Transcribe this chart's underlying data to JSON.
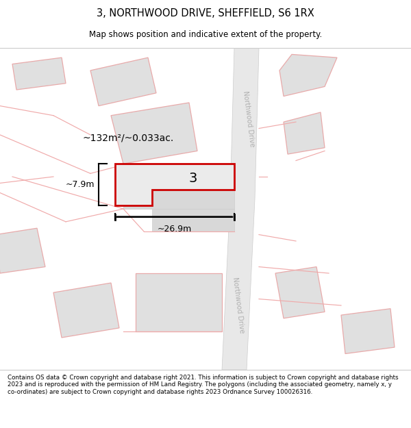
{
  "title": "3, NORTHWOOD DRIVE, SHEFFIELD, S6 1RX",
  "subtitle": "Map shows position and indicative extent of the property.",
  "footer": "Contains OS data © Crown copyright and database right 2021. This information is subject to Crown copyright and database rights 2023 and is reproduced with the permission of HM Land Registry. The polygons (including the associated geometry, namely x, y co-ordinates) are subject to Crown copyright and database rights 2023 Ordnance Survey 100026316.",
  "map_bg": "#ffffff",
  "road_fill": "#e8e8e8",
  "road_edge": "#cccccc",
  "bldg_fill": "#e0e0e0",
  "bldg_edge": "#e8aaaa",
  "prop_line": "#f0aaaa",
  "plot_fill": "#ebebeb",
  "plot_edge": "#cc0000",
  "shadow_fill": "#d8d8d8",
  "shadow_edge": "#cccccc",
  "street_color": "#b0b0b0",
  "area_label": "~132m²/~0.033ac.",
  "width_label": "~26.9m",
  "height_label": "~7.9m",
  "num_label": "3"
}
